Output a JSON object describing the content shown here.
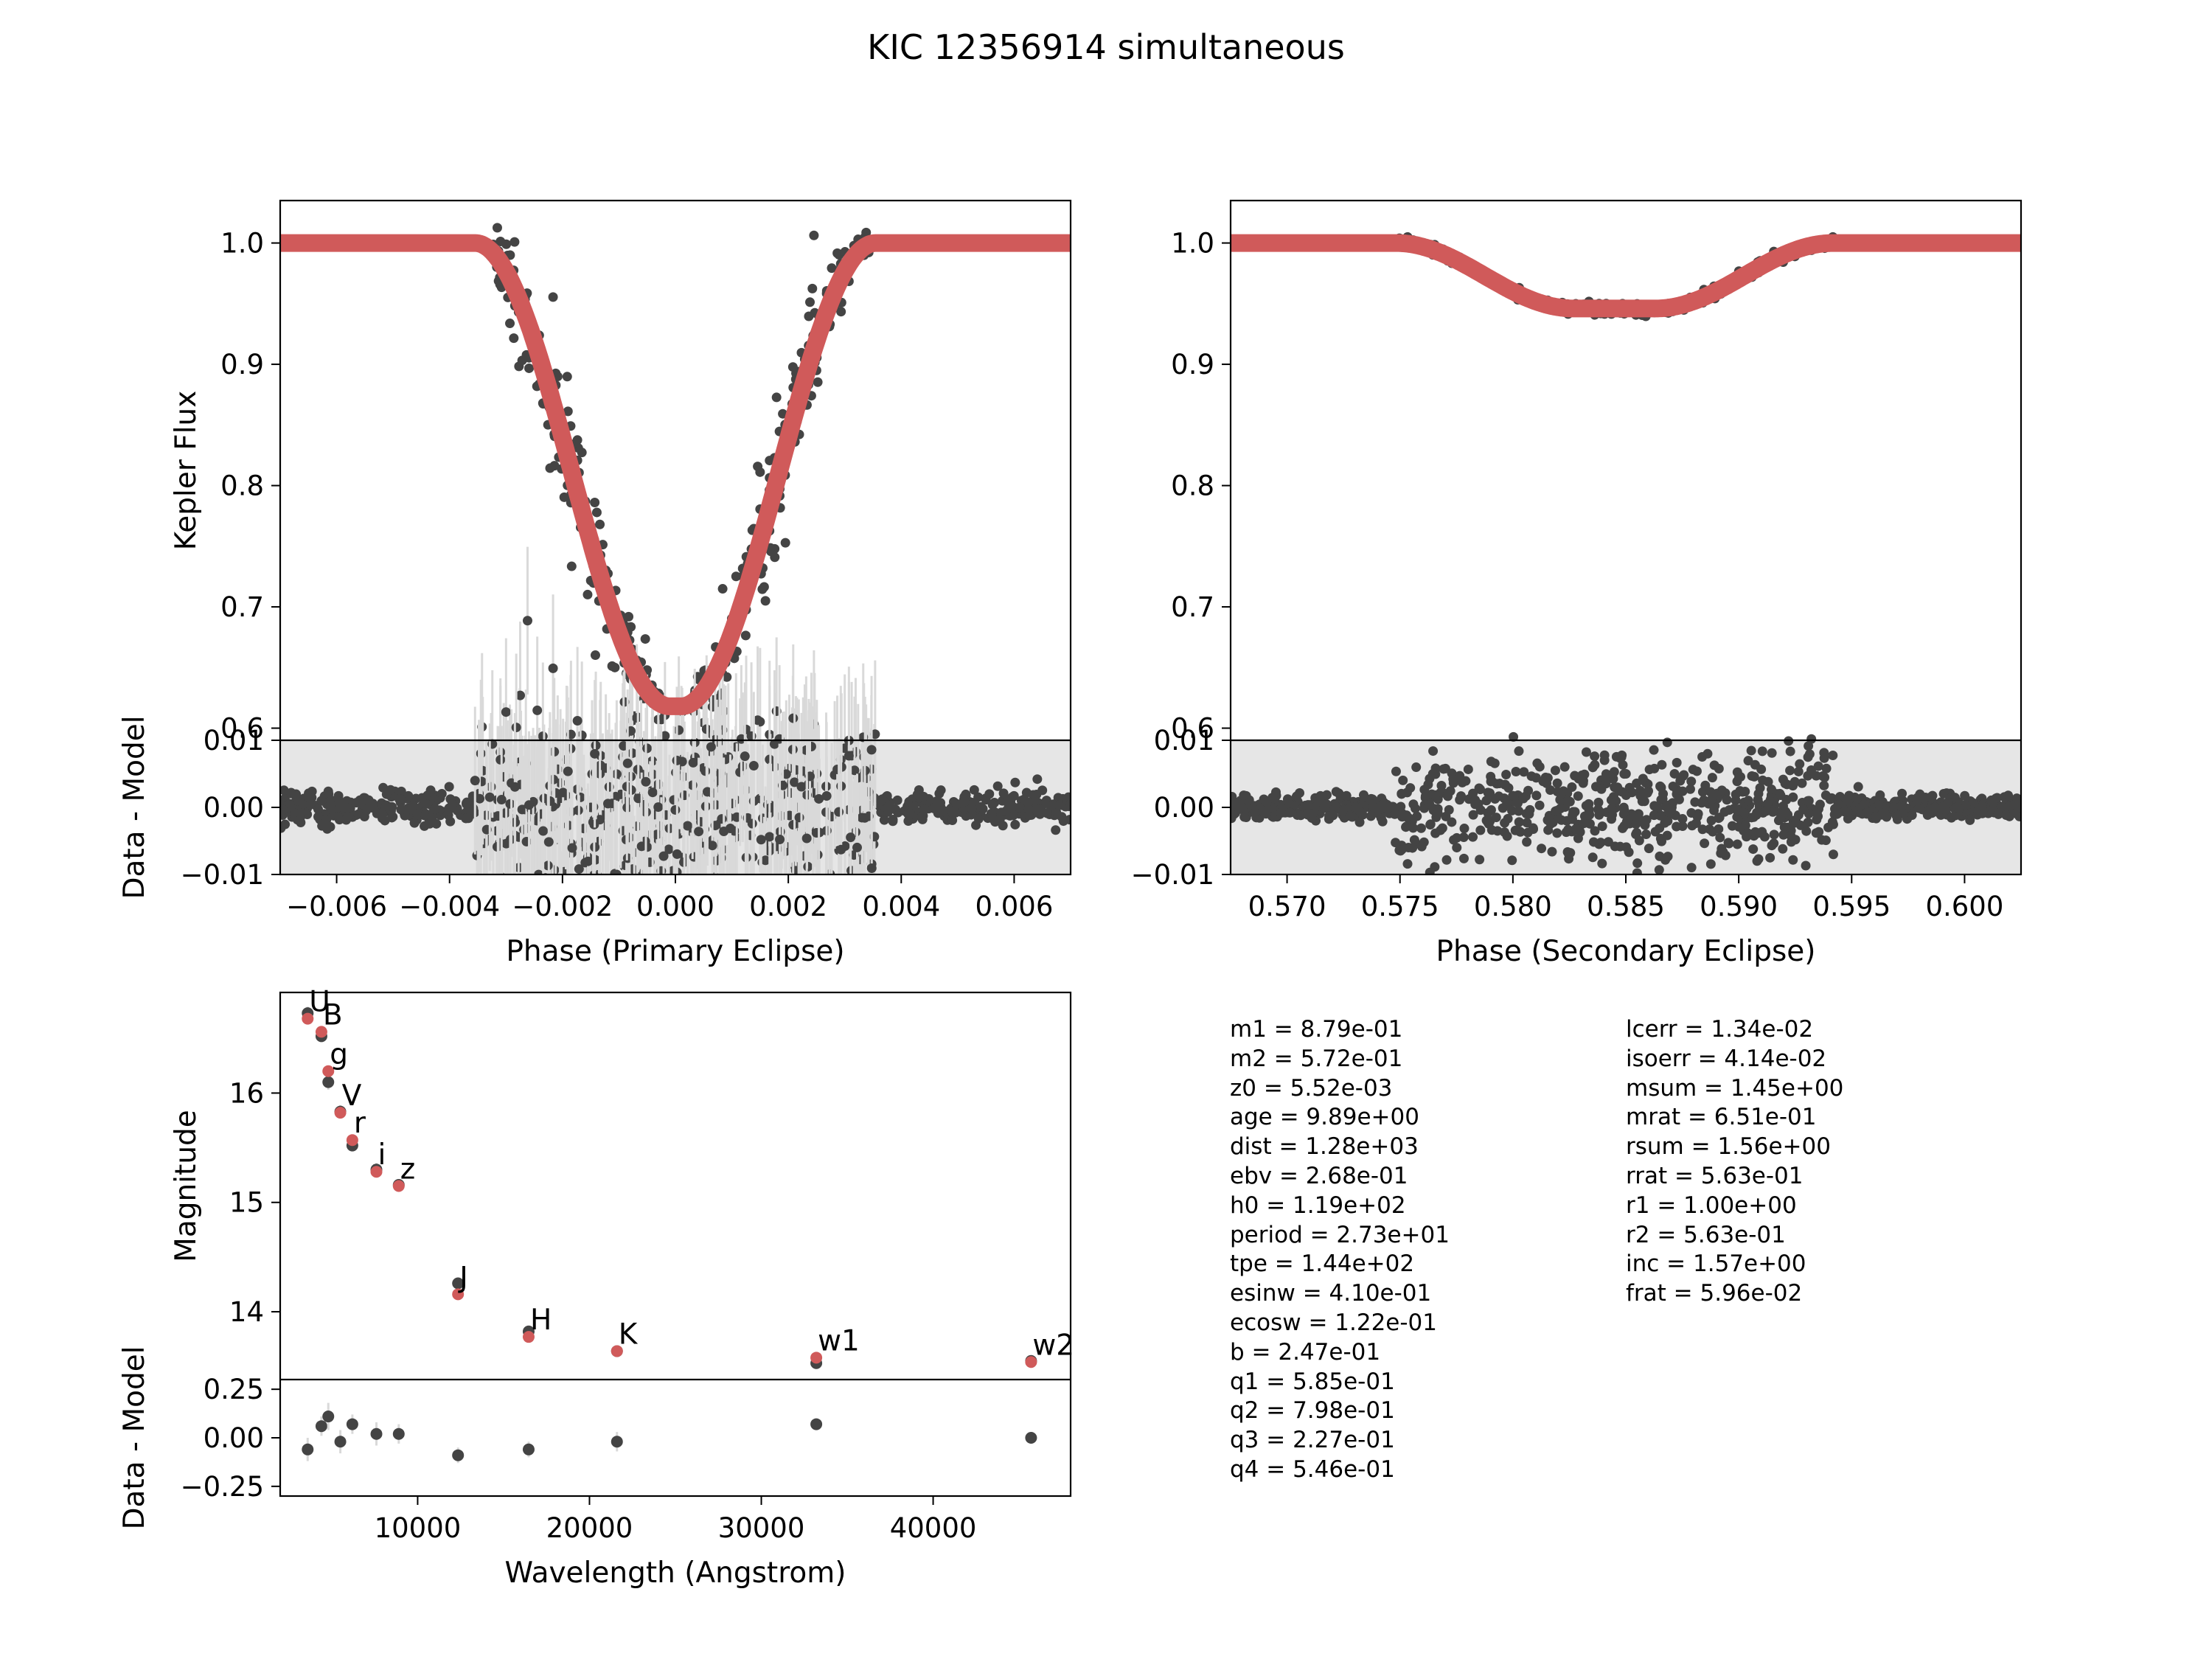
{
  "title": "KIC 12356914 simultaneous",
  "colors": {
    "data": "#444444",
    "model": "#d05a5a",
    "resid_bg": "#e6e6e6",
    "errbar": "#d9d9d9"
  },
  "chart_data": [
    {
      "id": "primary",
      "type": "scatter",
      "title": "",
      "xlabel": "Phase (Primary Eclipse)",
      "ylabel": "Kepler Flux",
      "resid_ylabel": "Data - Model",
      "xlim": [
        -0.007,
        0.007
      ],
      "ylim": [
        0.59,
        1.035
      ],
      "resid_ylim": [
        -0.01,
        0.01
      ],
      "xticks": [
        -0.006,
        -0.004,
        -0.002,
        0.0,
        0.002,
        0.004,
        0.006
      ],
      "xtick_labels": [
        "−0.006",
        "−0.004",
        "−0.002",
        "0.000",
        "0.002",
        "0.004",
        "0.006"
      ],
      "yticks": [
        0.6,
        0.7,
        0.8,
        0.9,
        1.0
      ],
      "ytick_labels": [
        "0.6",
        "0.7",
        "0.8",
        "0.9",
        "1.0"
      ],
      "resid_yticks": [
        -0.01,
        0.0,
        0.01
      ],
      "resid_ytick_labels": [
        "−0.01",
        "0.00",
        "0.01"
      ],
      "model": {
        "center": 0.0,
        "depth": 0.382,
        "half_width": 0.00355,
        "floor_half_width": 0.0001
      },
      "scatter": {
        "n": 900,
        "inner_width": 0.0032,
        "scatter": 0.06,
        "resid_scatter": 0.0012,
        "seed": 11
      }
    },
    {
      "id": "secondary",
      "type": "scatter",
      "title": "",
      "xlabel": "Phase (Secondary Eclipse)",
      "ylabel": "",
      "resid_ylabel": "",
      "xlim": [
        0.5675,
        0.6025
      ],
      "ylim": [
        0.59,
        1.035
      ],
      "resid_ylim": [
        -0.01,
        0.01
      ],
      "xticks": [
        0.57,
        0.575,
        0.58,
        0.585,
        0.59,
        0.595,
        0.6
      ],
      "xtick_labels": [
        "0.570",
        "0.575",
        "0.580",
        "0.585",
        "0.590",
        "0.595",
        "0.600"
      ],
      "yticks": [
        0.6,
        0.7,
        0.8,
        0.9,
        1.0
      ],
      "ytick_labels": [
        "0.6",
        "0.7",
        "0.8",
        "0.9",
        "1.0"
      ],
      "resid_yticks": [
        -0.01,
        0.0,
        0.01
      ],
      "resid_ytick_labels": [
        "−0.01",
        "0.00",
        "0.01"
      ],
      "model": {
        "center": 0.5845,
        "depth": 0.054,
        "half_width": 0.0097,
        "floor_half_width": 0.0018
      },
      "scatter": {
        "n": 1100,
        "inner_width": 0.0022,
        "scatter": 0.004,
        "resid_scatter": 0.0009,
        "seed": 23
      }
    },
    {
      "id": "sed",
      "type": "scatter",
      "title": "",
      "xlabel": "Wavelength (Angstrom)",
      "ylabel": "Magnitude",
      "resid_ylabel": "Data - Model",
      "xlim": [
        2000,
        48000
      ],
      "ylim": [
        13.38,
        16.92
      ],
      "resid_ylim": [
        -0.3,
        0.3
      ],
      "xticks": [
        10000,
        20000,
        30000,
        40000
      ],
      "xtick_labels": [
        "10000",
        "20000",
        "30000",
        "40000"
      ],
      "yticks": [
        14,
        15,
        16
      ],
      "ytick_labels": [
        "14",
        "15",
        "16"
      ],
      "resid_yticks": [
        -0.25,
        0.0,
        0.25
      ],
      "resid_ytick_labels": [
        "−0.25",
        "0.00",
        "0.25"
      ],
      "bands": [
        {
          "label": "U",
          "wavelength": 3600,
          "observed": 16.73,
          "model": 16.68,
          "residual": -0.06,
          "err": 0.06
        },
        {
          "label": "B",
          "wavelength": 4400,
          "observed": 16.52,
          "model": 16.56,
          "residual": 0.06,
          "err": 0.05
        },
        {
          "label": "g",
          "wavelength": 4800,
          "observed": 16.1,
          "model": 16.2,
          "residual": 0.11,
          "err": 0.07
        },
        {
          "label": "V",
          "wavelength": 5500,
          "observed": 15.83,
          "model": 15.82,
          "residual": -0.02,
          "err": 0.06
        },
        {
          "label": "r",
          "wavelength": 6200,
          "observed": 15.52,
          "model": 15.57,
          "residual": 0.07,
          "err": 0.05
        },
        {
          "label": "i",
          "wavelength": 7600,
          "observed": 15.3,
          "model": 15.28,
          "residual": 0.02,
          "err": 0.06
        },
        {
          "label": "z",
          "wavelength": 8900,
          "observed": 15.16,
          "model": 15.15,
          "residual": 0.02,
          "err": 0.05
        },
        {
          "label": "J",
          "wavelength": 12350,
          "observed": 14.26,
          "model": 14.16,
          "residual": -0.09,
          "err": 0.04
        },
        {
          "label": "H",
          "wavelength": 16460,
          "observed": 13.82,
          "model": 13.77,
          "residual": -0.06,
          "err": 0.04
        },
        {
          "label": "K",
          "wavelength": 21600,
          "observed": 13.64,
          "model": 13.64,
          "residual": -0.02,
          "err": 0.05
        },
        {
          "label": "w1",
          "wavelength": 33200,
          "observed": 13.53,
          "model": 13.58,
          "residual": 0.07,
          "err": 0.03
        },
        {
          "label": "w2",
          "wavelength": 45700,
          "observed": 13.55,
          "model": 13.54,
          "residual": 0.0,
          "err": 0.03
        }
      ]
    }
  ],
  "parameters": {
    "left": [
      "m1 = 8.79e-01",
      "m2 = 5.72e-01",
      "z0 = 5.52e-03",
      "age = 9.89e+00",
      "dist = 1.28e+03",
      "ebv = 2.68e-01",
      "h0 = 1.19e+02",
      "period = 2.73e+01",
      "tpe = 1.44e+02",
      "esinw = 4.10e-01",
      "ecosw = 1.22e-01",
      "b = 2.47e-01",
      "q1 = 5.85e-01",
      "q2 = 7.98e-01",
      "q3 = 2.27e-01",
      "q4 = 5.46e-01"
    ],
    "right": [
      "lcerr = 1.34e-02",
      "isoerr = 4.14e-02",
      "msum = 1.45e+00",
      "mrat = 6.51e-01",
      "rsum = 1.56e+00",
      "rrat = 5.63e-01",
      "r1 = 1.00e+00",
      "r2 = 5.63e-01",
      "inc = 1.57e+00",
      "frat = 5.96e-02"
    ]
  }
}
